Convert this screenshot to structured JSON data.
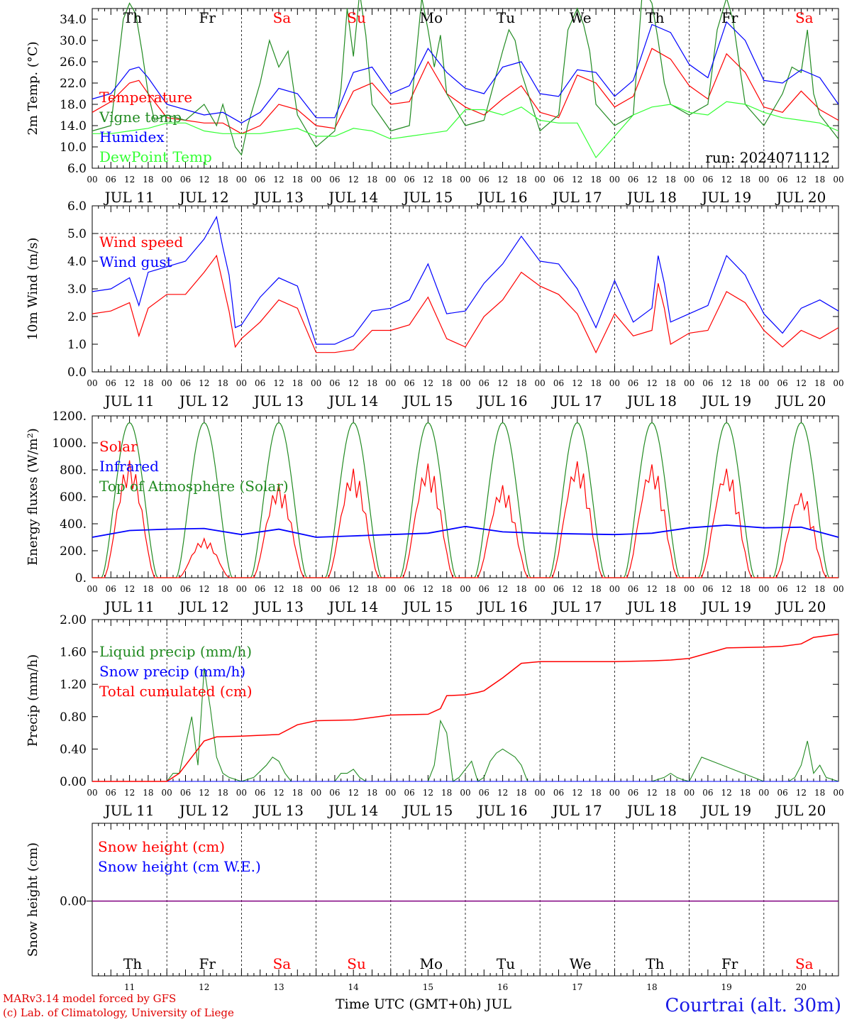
{
  "footer": {
    "model": "MARv3.14 model forced by GFS",
    "credit": "(c) Lab. of Climatology, University of Liege",
    "xaxis": "Time UTC (GMT+0h) JUL",
    "location": "Courtrai (alt. 30m)"
  },
  "weekdays": [
    "Th",
    "Fr",
    "Sa",
    "Su",
    "Mo",
    "Tu",
    "We",
    "Th",
    "Fr",
    "Sa"
  ],
  "weekend_flags": [
    false,
    false,
    true,
    true,
    false,
    false,
    false,
    false,
    false,
    true
  ],
  "date_labels": [
    "JUL 11",
    "JUL 12",
    "JUL 13",
    "JUL 14",
    "JUL 15",
    "JUL 16",
    "JUL 17",
    "JUL 18",
    "JUL 19",
    "JUL 20"
  ],
  "day_numbers": [
    "11",
    "12",
    "13",
    "14",
    "15",
    "16",
    "17",
    "18",
    "19",
    "20"
  ],
  "hour_labels": [
    "00",
    "06",
    "12",
    "18"
  ],
  "final_hour_label": "00",
  "colors": {
    "red": "#ff0000",
    "green": "#228b22",
    "blue": "#0000ff",
    "lightgreen": "#33ff33",
    "purple": "#800080",
    "weekend": "#ff0000"
  },
  "chart_data": [
    {
      "type": "line",
      "ylabel": "2m Temp. (°C)",
      "ylim": [
        6.0,
        36.0
      ],
      "yticks": [
        "6.0",
        "10.0",
        "14.0",
        "18.0",
        "22.0",
        "26.0",
        "30.0",
        "34.0"
      ],
      "run_label": "run: 2024071112",
      "x_unit": "hours since JUL 11 00 UTC",
      "series": [
        {
          "name": "Temperature",
          "color": "#ff0000",
          "x": [
            0,
            6,
            12,
            15,
            18,
            24,
            30,
            36,
            42,
            48,
            54,
            60,
            66,
            72,
            78,
            84,
            90,
            96,
            102,
            108,
            114,
            120,
            126,
            132,
            138,
            144,
            150,
            156,
            162,
            168,
            174,
            180,
            186,
            192,
            198,
            204,
            210,
            216,
            222,
            228,
            234,
            240
          ],
          "values": [
            16.5,
            18.5,
            22.0,
            22.5,
            20.0,
            15.5,
            15.0,
            14.5,
            14.5,
            12.5,
            14.0,
            18.0,
            17.0,
            14.0,
            13.5,
            20.5,
            22.0,
            18.0,
            18.5,
            26.0,
            20.0,
            17.5,
            16.0,
            19.0,
            21.5,
            16.5,
            15.5,
            23.5,
            22.0,
            17.5,
            19.5,
            28.5,
            26.5,
            21.5,
            19.0,
            27.5,
            24.0,
            17.5,
            16.5,
            20.5,
            17.0,
            15.0
          ]
        },
        {
          "name": "Vigne temp",
          "color": "#228b22",
          "x": [
            0,
            6,
            10,
            12,
            14,
            16,
            18,
            20,
            24,
            30,
            36,
            40,
            42,
            46,
            48,
            50,
            54,
            57,
            60,
            63,
            66,
            72,
            78,
            80,
            82,
            84,
            86,
            88,
            90,
            96,
            102,
            106,
            108,
            110,
            112,
            114,
            120,
            126,
            132,
            134,
            136,
            138,
            144,
            150,
            153,
            156,
            158,
            160,
            162,
            168,
            174,
            177,
            180,
            182,
            184,
            186,
            192,
            198,
            201,
            204,
            206,
            208,
            210,
            216,
            222,
            225,
            228,
            230,
            232,
            234,
            240
          ],
          "values": [
            13.0,
            14.0,
            34.0,
            37.0,
            35.0,
            28.0,
            20.0,
            15.0,
            16.0,
            15.0,
            18.0,
            14.0,
            18.0,
            10.0,
            8.5,
            14.0,
            22.0,
            30.0,
            25.0,
            28.0,
            16.0,
            10.0,
            13.0,
            21.0,
            36.0,
            27.0,
            39.0,
            31.0,
            18.0,
            13.0,
            14.0,
            38.0,
            32.0,
            25.0,
            31.0,
            20.0,
            14.0,
            15.0,
            28.0,
            32.0,
            30.0,
            24.0,
            13.0,
            16.0,
            32.0,
            36.0,
            33.0,
            28.0,
            18.0,
            14.0,
            16.0,
            40.0,
            37.0,
            30.0,
            22.0,
            18.0,
            16.0,
            18.0,
            32.0,
            38.0,
            34.0,
            26.0,
            18.0,
            14.0,
            20.0,
            25.0,
            24.0,
            32.0,
            20.0,
            16.0,
            11.5
          ]
        },
        {
          "name": "Humidex",
          "color": "#0000ff",
          "x": [
            0,
            6,
            12,
            15,
            18,
            24,
            30,
            36,
            42,
            48,
            54,
            60,
            66,
            72,
            78,
            84,
            90,
            96,
            102,
            108,
            114,
            120,
            126,
            132,
            138,
            144,
            150,
            156,
            162,
            168,
            174,
            180,
            186,
            192,
            198,
            204,
            210,
            216,
            222,
            228,
            234,
            240
          ],
          "values": [
            19.0,
            20.0,
            24.5,
            25.0,
            23.0,
            18.0,
            17.0,
            16.0,
            16.5,
            14.5,
            16.5,
            21.0,
            20.0,
            15.5,
            15.5,
            24.0,
            25.0,
            20.0,
            21.5,
            28.5,
            24.0,
            21.0,
            20.0,
            25.0,
            26.0,
            20.0,
            19.5,
            24.5,
            24.0,
            19.5,
            22.5,
            33.0,
            31.5,
            25.5,
            23.0,
            33.5,
            30.0,
            22.5,
            22.0,
            24.5,
            23.0,
            18.0
          ]
        },
        {
          "name": "DewPoint Temp",
          "color": "#33ff33",
          "x": [
            0,
            6,
            12,
            18,
            24,
            30,
            36,
            42,
            48,
            54,
            60,
            66,
            72,
            78,
            84,
            90,
            96,
            102,
            108,
            114,
            120,
            126,
            132,
            138,
            144,
            150,
            156,
            162,
            168,
            174,
            180,
            186,
            192,
            198,
            204,
            210,
            216,
            222,
            228,
            234,
            240
          ],
          "values": [
            12.5,
            12.5,
            13.0,
            13.5,
            14.5,
            14.5,
            13.0,
            12.5,
            12.5,
            12.5,
            13.0,
            13.5,
            12.0,
            12.0,
            13.5,
            13.0,
            11.5,
            12.0,
            12.5,
            13.0,
            17.0,
            17.0,
            16.0,
            17.5,
            15.0,
            14.5,
            14.5,
            8.0,
            12.0,
            16.0,
            17.5,
            18.0,
            16.5,
            16.0,
            18.5,
            18.0,
            16.5,
            15.5,
            15.0,
            14.5,
            13.0
          ]
        }
      ],
      "legend": "top-left",
      "grid": false
    },
    {
      "type": "line",
      "ylabel": "10m Wind (m/s)",
      "ylim": [
        0.0,
        6.0
      ],
      "yticks": [
        "0.0",
        "1.0",
        "2.0",
        "3.0",
        "4.0",
        "5.0",
        "6.0"
      ],
      "reference_line": 5.0,
      "series": [
        {
          "name": "Wind speed",
          "color": "#ff0000",
          "x": [
            0,
            6,
            12,
            15,
            18,
            24,
            30,
            36,
            40,
            42,
            44,
            46,
            48,
            54,
            60,
            66,
            72,
            78,
            84,
            90,
            96,
            102,
            108,
            114,
            120,
            126,
            132,
            138,
            144,
            150,
            156,
            162,
            168,
            174,
            180,
            182,
            184,
            186,
            192,
            198,
            204,
            210,
            216,
            222,
            228,
            234,
            240
          ],
          "values": [
            2.1,
            2.2,
            2.5,
            1.3,
            2.3,
            2.8,
            2.8,
            3.6,
            4.2,
            3.2,
            2.2,
            0.9,
            1.2,
            1.8,
            2.6,
            2.3,
            0.7,
            0.7,
            0.8,
            1.5,
            1.5,
            1.7,
            2.7,
            1.2,
            0.9,
            2.0,
            2.6,
            3.6,
            3.1,
            2.8,
            2.1,
            0.7,
            2.1,
            1.3,
            1.5,
            3.2,
            2.3,
            1.0,
            1.4,
            1.5,
            2.9,
            2.5,
            1.5,
            0.9,
            1.5,
            1.2,
            1.6
          ]
        },
        {
          "name": "Wind gust",
          "color": "#0000ff",
          "x": [
            0,
            6,
            12,
            15,
            18,
            24,
            30,
            36,
            40,
            42,
            44,
            46,
            48,
            54,
            60,
            66,
            72,
            78,
            84,
            90,
            96,
            102,
            108,
            114,
            120,
            126,
            132,
            138,
            144,
            150,
            156,
            162,
            168,
            174,
            180,
            182,
            184,
            186,
            192,
            198,
            204,
            210,
            216,
            222,
            228,
            234,
            240
          ],
          "values": [
            2.9,
            3.0,
            3.4,
            2.4,
            3.6,
            3.8,
            4.0,
            4.8,
            5.6,
            4.5,
            3.5,
            1.6,
            1.7,
            2.7,
            3.4,
            3.1,
            1.0,
            1.0,
            1.3,
            2.2,
            2.3,
            2.6,
            3.9,
            2.1,
            2.2,
            3.2,
            3.9,
            4.9,
            4.0,
            3.9,
            3.0,
            1.6,
            3.3,
            1.8,
            2.3,
            4.2,
            3.2,
            1.8,
            2.1,
            2.4,
            4.2,
            3.5,
            2.1,
            1.4,
            2.3,
            2.6,
            2.2
          ]
        }
      ],
      "legend": "top-left",
      "grid": false
    },
    {
      "type": "line",
      "ylabel": "Energy fluxes (W/m²)",
      "ylim": [
        0,
        1200
      ],
      "yticks": [
        "0.",
        "200.",
        "400.",
        "600.",
        "800.",
        "1000.",
        "1200."
      ],
      "series": [
        {
          "name": "Solar",
          "color": "#ff0000",
          "peak_values": [
            870,
            290,
            700,
            810,
            850,
            690,
            870,
            850,
            820,
            640
          ]
        },
        {
          "name": "Infrared",
          "color": "#0000ff",
          "x": [
            0,
            12,
            24,
            36,
            48,
            60,
            72,
            84,
            96,
            108,
            120,
            132,
            144,
            156,
            168,
            180,
            192,
            204,
            216,
            228,
            240
          ],
          "values": [
            300,
            350,
            360,
            365,
            320,
            360,
            300,
            310,
            320,
            330,
            380,
            340,
            330,
            325,
            320,
            330,
            370,
            390,
            370,
            375,
            300
          ]
        },
        {
          "name": "Top of Atmosphere (Solar)",
          "color": "#228b22",
          "daily_peak": 1150
        }
      ],
      "legend": "top-left",
      "grid": false
    },
    {
      "type": "line",
      "ylabel": "Precip (mm/h)",
      "ylim": [
        0.0,
        2.0
      ],
      "yticks": [
        "0.00",
        "0.40",
        "0.80",
        "1.20",
        "1.60",
        "2.00"
      ],
      "series": [
        {
          "name": "Liquid precip (mm/h)",
          "color": "#228b22",
          "x": [
            0,
            20,
            24,
            26,
            28,
            30,
            32,
            34,
            36,
            38,
            40,
            42,
            44,
            48,
            52,
            56,
            58,
            60,
            62,
            64,
            72,
            78,
            80,
            82,
            84,
            86,
            88,
            90,
            96,
            102,
            108,
            110,
            112,
            114,
            116,
            118,
            120,
            122,
            124,
            126,
            128,
            130,
            132,
            134,
            136,
            138,
            140,
            144,
            162,
            168,
            180,
            184,
            186,
            188,
            190,
            192,
            196,
            216,
            224,
            226,
            228,
            230,
            232,
            234,
            236,
            240
          ],
          "values": [
            0,
            0,
            0,
            0.1,
            0.1,
            0.45,
            0.8,
            0.2,
            1.4,
            0.9,
            0.3,
            0.1,
            0.05,
            0,
            0.05,
            0.2,
            0.3,
            0.25,
            0.1,
            0,
            0,
            0,
            0.1,
            0.1,
            0.15,
            0.05,
            0,
            0,
            0,
            0,
            0,
            0.2,
            0.75,
            0.6,
            0,
            0.05,
            0.15,
            0.25,
            0,
            0.05,
            0.25,
            0.35,
            0.4,
            0.35,
            0.3,
            0.2,
            0,
            0,
            0,
            0,
            0,
            0.05,
            0.1,
            0.05,
            0.02,
            0,
            0.3,
            0,
            0,
            0.05,
            0.2,
            0.5,
            0.1,
            0.2,
            0.05,
            0
          ]
        },
        {
          "name": "Snow precip (mm/h)",
          "color": "#0000ff",
          "x": [
            0,
            240
          ],
          "values": [
            0,
            0
          ]
        },
        {
          "name": "Total cumulated (cm)",
          "color": "#ff0000",
          "x": [
            0,
            24,
            28,
            32,
            36,
            40,
            48,
            60,
            66,
            72,
            84,
            96,
            108,
            112,
            114,
            120,
            124,
            126,
            132,
            138,
            144,
            160,
            168,
            180,
            186,
            192,
            204,
            216,
            222,
            228,
            232,
            240
          ],
          "values": [
            0,
            0,
            0.1,
            0.3,
            0.5,
            0.55,
            0.56,
            0.58,
            0.7,
            0.75,
            0.76,
            0.82,
            0.83,
            0.9,
            1.06,
            1.07,
            1.1,
            1.12,
            1.28,
            1.46,
            1.48,
            1.48,
            1.48,
            1.49,
            1.5,
            1.52,
            1.65,
            1.66,
            1.67,
            1.7,
            1.78,
            1.82
          ]
        }
      ],
      "legend": "top-left",
      "grid": false
    },
    {
      "type": "line",
      "ylabel": "Snow height (cm)",
      "yticks": [
        "0.00"
      ],
      "series": [
        {
          "name": "Snow height (cm)",
          "color": "#ff0000",
          "x": [
            0,
            240
          ],
          "values": [
            0,
            0
          ]
        },
        {
          "name": "Snow height (cm W.E.)",
          "color": "#0000ff",
          "x": [
            0,
            240
          ],
          "values": [
            0,
            0
          ]
        }
      ],
      "legend": "top-left",
      "grid": false
    }
  ]
}
